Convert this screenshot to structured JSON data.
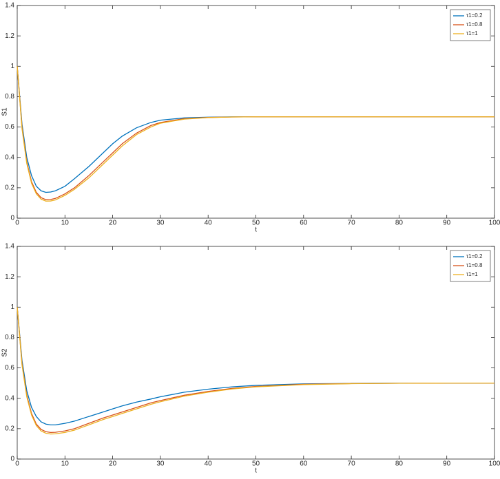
{
  "chart_data": [
    {
      "type": "line",
      "x_label": "t",
      "y_label": "S1",
      "x": [
        0,
        1,
        2,
        3,
        4,
        5,
        6,
        7,
        8,
        10,
        12,
        15,
        18,
        20,
        22,
        25,
        28,
        30,
        35,
        40,
        45,
        50,
        60,
        70,
        80,
        90,
        100
      ],
      "series": [
        {
          "name": "τ1=0.2",
          "color": "#0072BD",
          "values": [
            1,
            0.62,
            0.4,
            0.28,
            0.21,
            0.18,
            0.17,
            0.172,
            0.18,
            0.21,
            0.26,
            0.34,
            0.43,
            0.49,
            0.54,
            0.595,
            0.63,
            0.645,
            0.66,
            0.665,
            0.667,
            0.667,
            0.667,
            0.667,
            0.667,
            0.667,
            0.667
          ]
        },
        {
          "name": "τ1=0.8",
          "color": "#D95319",
          "values": [
            1,
            0.6,
            0.37,
            0.24,
            0.17,
            0.135,
            0.122,
            0.123,
            0.13,
            0.16,
            0.2,
            0.28,
            0.37,
            0.43,
            0.49,
            0.56,
            0.61,
            0.63,
            0.655,
            0.663,
            0.666,
            0.667,
            0.667,
            0.667,
            0.667,
            0.667,
            0.667
          ]
        },
        {
          "name": "τ1=1",
          "color": "#EDB120",
          "values": [
            1,
            0.59,
            0.36,
            0.23,
            0.16,
            0.125,
            0.112,
            0.113,
            0.12,
            0.15,
            0.19,
            0.265,
            0.355,
            0.415,
            0.475,
            0.55,
            0.6,
            0.625,
            0.652,
            0.662,
            0.666,
            0.667,
            0.667,
            0.667,
            0.667,
            0.667,
            0.667
          ]
        }
      ],
      "xlim": [
        0,
        100
      ],
      "xticks": [
        0,
        10,
        20,
        30,
        40,
        50,
        60,
        70,
        80,
        90,
        100
      ],
      "ylim": [
        0,
        1.4
      ],
      "yticks": [
        0,
        0.2,
        0.4,
        0.6,
        0.8,
        1,
        1.2,
        1.4
      ],
      "legend": "upper right"
    },
    {
      "type": "line",
      "x_label": "t",
      "y_label": "S2",
      "x": [
        0,
        1,
        2,
        3,
        4,
        5,
        6,
        7,
        8,
        10,
        12,
        15,
        18,
        20,
        22,
        25,
        28,
        30,
        35,
        40,
        45,
        50,
        60,
        70,
        80,
        90,
        100
      ],
      "series": [
        {
          "name": "τ1=0.2",
          "color": "#0072BD",
          "values": [
            1,
            0.65,
            0.45,
            0.34,
            0.28,
            0.245,
            0.23,
            0.225,
            0.225,
            0.235,
            0.25,
            0.28,
            0.31,
            0.33,
            0.35,
            0.375,
            0.395,
            0.41,
            0.44,
            0.46,
            0.475,
            0.485,
            0.495,
            0.498,
            0.5,
            0.5,
            0.5
          ]
        },
        {
          "name": "τ1=0.8",
          "color": "#D95319",
          "values": [
            1,
            0.63,
            0.42,
            0.3,
            0.23,
            0.195,
            0.18,
            0.175,
            0.176,
            0.185,
            0.2,
            0.235,
            0.27,
            0.29,
            0.31,
            0.34,
            0.37,
            0.385,
            0.42,
            0.445,
            0.465,
            0.478,
            0.492,
            0.497,
            0.499,
            0.5,
            0.5
          ]
        },
        {
          "name": "τ1=1",
          "color": "#EDB120",
          "values": [
            1,
            0.62,
            0.41,
            0.29,
            0.22,
            0.185,
            0.17,
            0.165,
            0.166,
            0.175,
            0.19,
            0.225,
            0.26,
            0.28,
            0.3,
            0.33,
            0.36,
            0.377,
            0.414,
            0.44,
            0.461,
            0.475,
            0.49,
            0.496,
            0.499,
            0.5,
            0.5
          ]
        }
      ],
      "xlim": [
        0,
        100
      ],
      "xticks": [
        0,
        10,
        20,
        30,
        40,
        50,
        60,
        70,
        80,
        90,
        100
      ],
      "ylim": [
        0,
        1.4
      ],
      "yticks": [
        0,
        0.2,
        0.4,
        0.6,
        0.8,
        1,
        1.2,
        1.4
      ],
      "legend": "upper right"
    }
  ]
}
